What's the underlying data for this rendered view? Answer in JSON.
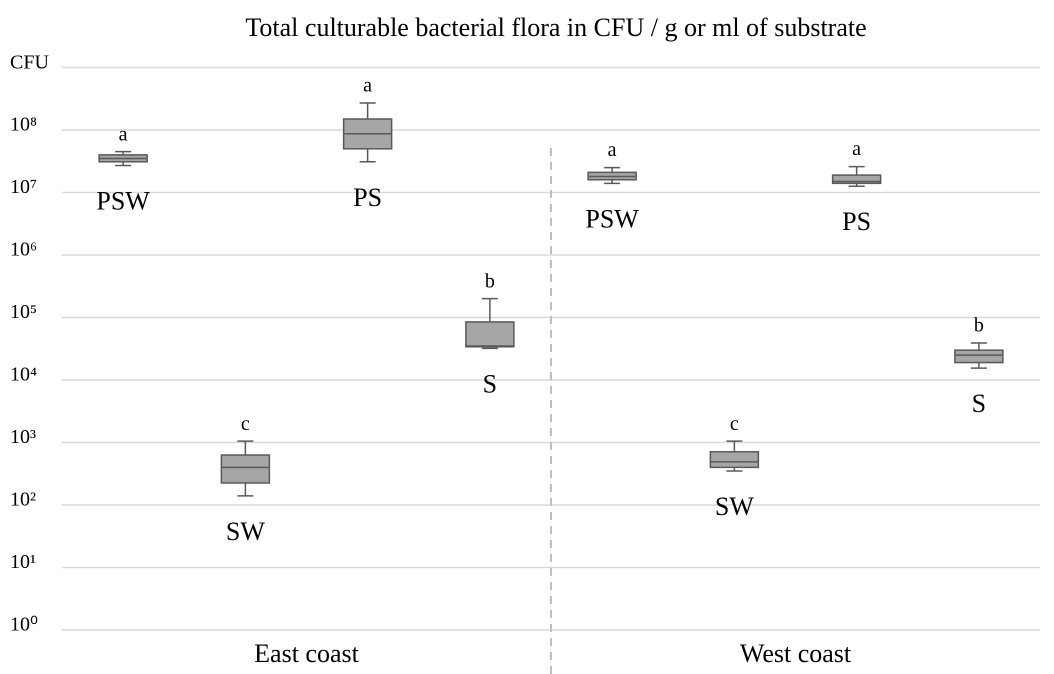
{
  "chart_data": {
    "type": "box",
    "title": "Total culturable bacterial flora in CFU / g or ml of substrate",
    "y_label": "CFU",
    "log_scale": true,
    "grid": true,
    "ylim": [
      1,
      1000000000
    ],
    "yticks": [
      {
        "value": 1,
        "label": "10⁰"
      },
      {
        "value": 10,
        "label": "10¹"
      },
      {
        "value": 100,
        "label": "10²"
      },
      {
        "value": 1000,
        "label": "10³"
      },
      {
        "value": 10000,
        "label": "10⁴"
      },
      {
        "value": 100000,
        "label": "10⁵"
      },
      {
        "value": 1000000,
        "label": "10⁶"
      },
      {
        "value": 10000000,
        "label": "10⁷"
      },
      {
        "value": 100000000,
        "label": "10⁸"
      }
    ],
    "box_color": "#a6a6a6",
    "line_color": "#595959",
    "groups": [
      {
        "name": "East coast",
        "boxes": [
          {
            "label": "PSW",
            "letter": "a",
            "min": 27000000,
            "q1": 31000000,
            "median": 35000000,
            "q3": 40000000,
            "max": 45000000
          },
          {
            "label": "SW",
            "letter": "c",
            "min": 140,
            "q1": 225,
            "median": 400,
            "q3": 630,
            "max": 1050
          },
          {
            "label": "PS",
            "letter": "a",
            "min": 31000000,
            "q1": 50000000,
            "median": 87000000,
            "q3": 150000000,
            "max": 270000000
          },
          {
            "label": "S",
            "letter": "b",
            "min": 32000.0,
            "q1": 34000,
            "median": 35000,
            "q3": 85000,
            "max": 200000
          }
        ]
      },
      {
        "name": "West coast",
        "boxes": [
          {
            "label": "PSW",
            "letter": "a",
            "min": 14000000,
            "q1": 16000000,
            "median": 18000000,
            "q3": 21000000,
            "max": 25000000
          },
          {
            "label": "SW",
            "letter": "c",
            "min": 350,
            "q1": 400,
            "median": 490,
            "q3": 710,
            "max": 1050
          },
          {
            "label": "PS",
            "letter": "a",
            "min": 12600000,
            "q1": 14000000,
            "median": 15000000,
            "q3": 19000000,
            "max": 26000000
          },
          {
            "label": "S",
            "letter": "b",
            "min": 15500,
            "q1": 19000,
            "median": 25000,
            "q3": 30000,
            "max": 39000
          }
        ]
      }
    ]
  }
}
